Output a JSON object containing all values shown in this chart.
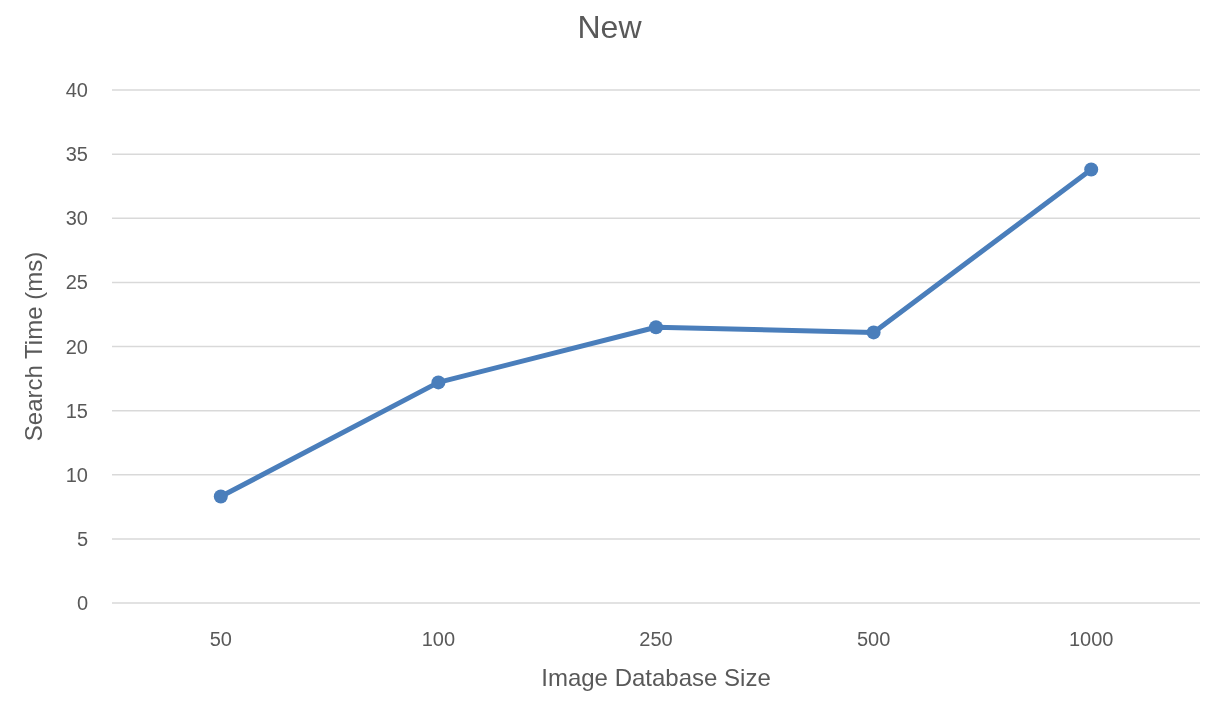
{
  "chart_data": {
    "type": "line",
    "title": "New",
    "xlabel": "Image Database Size",
    "ylabel": "Search Time (ms)",
    "categories": [
      "50",
      "100",
      "250",
      "500",
      "1000"
    ],
    "series": [
      {
        "color": "#4a7ebb",
        "values": [
          8.3,
          17.2,
          21.5,
          21.1,
          33.8
        ]
      }
    ],
    "ylim": [
      0,
      40
    ],
    "yticks": [
      0,
      5,
      10,
      15,
      20,
      25,
      30,
      35,
      40
    ],
    "grid": "y",
    "marker": "circle",
    "line_style": "solid"
  }
}
